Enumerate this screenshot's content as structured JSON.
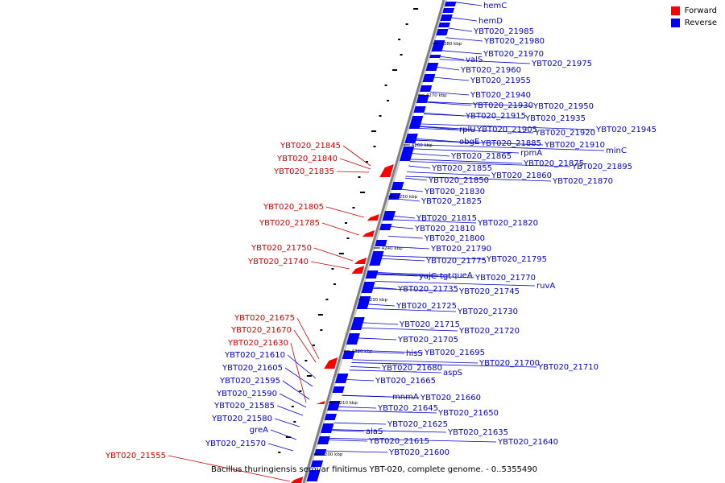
{
  "legend": {
    "forward_label": "Forward",
    "reverse_label": "Reverse",
    "forward_color": "#ff0000",
    "reverse_color": "#0000ff"
  },
  "caption": "Bacillus thuringiensis serovar finitimus YBT-020, complete genome. - 0..5355490",
  "colors": {
    "backbone": "#808080",
    "label_forward": "#cc0000",
    "label_reverse": "#0000cc"
  },
  "ticks": [
    "4280 kbp",
    "4270 kbp",
    "4260 kbp",
    "4250 kbp",
    "4240 kbp",
    "4230 kbp",
    "4220 kbp",
    "4210 kbp",
    "4200 kbp"
  ],
  "forward_genes": [
    "YBT020_21845",
    "YBT020_21840",
    "YBT020_21835",
    "YBT020_21805",
    "YBT020_21785",
    "YBT020_21750",
    "YBT020_21740",
    "YBT020_21675",
    "YBT020_21670",
    "YBT020_21630",
    "YBT020_21555"
  ],
  "reverse_genes_left": [
    "YBT020_21610",
    "YBT020_21605",
    "YBT020_21595",
    "YBT020_21590",
    "YBT020_21585",
    "YBT020_21580",
    "greA",
    "YBT020_21570"
  ],
  "reverse_genes_right": [
    "hemC",
    "hemD",
    "YBT020_21985",
    "YBT020_21980",
    "YBT020_21970",
    "YBT020_21975",
    "valS",
    "YBT020_21960",
    "YBT020_21955",
    "YBT020_21940",
    "YBT020_21930",
    "YBT020_21950",
    "YBT020_21915",
    "YBT020_21935",
    "rplU",
    "YBT020_21905",
    "YBT020_21920",
    "YBT020_21945",
    "obgE",
    "YBT020_21885",
    "YBT020_21910",
    "minC",
    "rpmA",
    "YBT020_21865",
    "YBT020_21875",
    "YBT020_21895",
    "YBT020_21855",
    "YBT020_21860",
    "YBT020_21850",
    "YBT020_21870",
    "YBT020_21830",
    "YBT020_21825",
    "YBT020_21815",
    "YBT020_21820",
    "YBT020_21810",
    "YBT020_21800",
    "YBT020_21790",
    "YBT020_21775",
    "YBT020_21795",
    "yajC",
    "tgt",
    "queA",
    "YBT020_21770",
    "ruvA",
    "YBT020_21735",
    "YBT020_21745",
    "YBT020_21725",
    "YBT020_21730",
    "YBT020_21715",
    "YBT020_21720",
    "YBT020_21705",
    "hisS",
    "YBT020_21695",
    "YBT020_21700",
    "YBT020_21710",
    "YBT020_21680",
    "aspS",
    "YBT020_21665",
    "mnmA",
    "YBT020_21660",
    "YBT020_21645",
    "YBT020_21650",
    "YBT020_21625",
    "YBT020_21635",
    "alaS",
    "YBT020_21640",
    "YBT020_21615",
    "YBT020_21600"
  ]
}
